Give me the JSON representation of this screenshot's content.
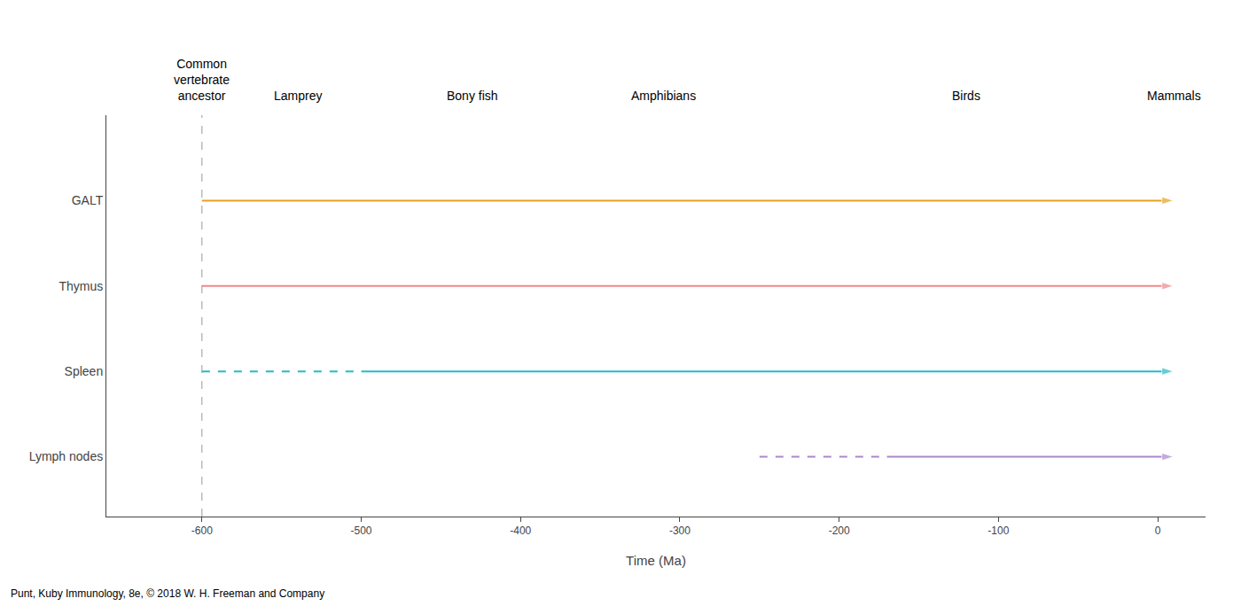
{
  "chart_data": {
    "type": "timeline",
    "xlabel": "Time (Ma)",
    "xlim": [
      -660,
      30
    ],
    "xticks": [
      -600,
      -500,
      -400,
      -300,
      -200,
      -100,
      0
    ],
    "ylim": [
      0.3,
      5.0
    ],
    "yticks": [
      {
        "value": 4,
        "label": "GALT"
      },
      {
        "value": 3,
        "label": "Thymus"
      },
      {
        "value": 2,
        "label": "Spleen"
      },
      {
        "value": 1,
        "label": "Lymph nodes"
      }
    ],
    "grid": false,
    "series": [
      {
        "name": "GALT",
        "color": "#E8A020",
        "y": 4,
        "marker": "arrow",
        "segments": [
          {
            "values": [
              -600,
              10
            ],
            "line_style": "solid"
          }
        ]
      },
      {
        "name": "Thymus",
        "color": "#F08888",
        "y": 3,
        "marker": "arrow",
        "segments": [
          {
            "values": [
              -600,
              10
            ],
            "line_style": "solid"
          }
        ]
      },
      {
        "name": "Spleen",
        "color": "#22BCC8",
        "y": 2,
        "marker": "arrow",
        "segments": [
          {
            "values": [
              -600,
              -500
            ],
            "line_style": "dashed"
          },
          {
            "values": [
              -500,
              10
            ],
            "line_style": "solid"
          }
        ]
      },
      {
        "name": "Lymph nodes",
        "color": "#AA88CC",
        "y": 1,
        "marker": "arrow",
        "segments": [
          {
            "values": [
              -250,
              -170
            ],
            "line_style": "dashed"
          },
          {
            "values": [
              -170,
              10
            ],
            "line_style": "solid"
          }
        ]
      }
    ],
    "vlines": [
      {
        "x": -600,
        "color": "#999999",
        "line_style": "dashed"
      }
    ],
    "annotations": [
      {
        "text": "Common\nvertebrate\nancestor",
        "x": -600
      },
      {
        "text": "Lamprey",
        "x": -540
      },
      {
        "text": "Bony fish",
        "x": -430
      },
      {
        "text": "Amphibians",
        "x": -310
      },
      {
        "text": "Birds",
        "x": -120
      },
      {
        "text": "Mammals",
        "x": 10
      }
    ],
    "footnote": "Punt, Kuby Immunology, 8e, © 2018 W. H. Freeman and Company"
  }
}
